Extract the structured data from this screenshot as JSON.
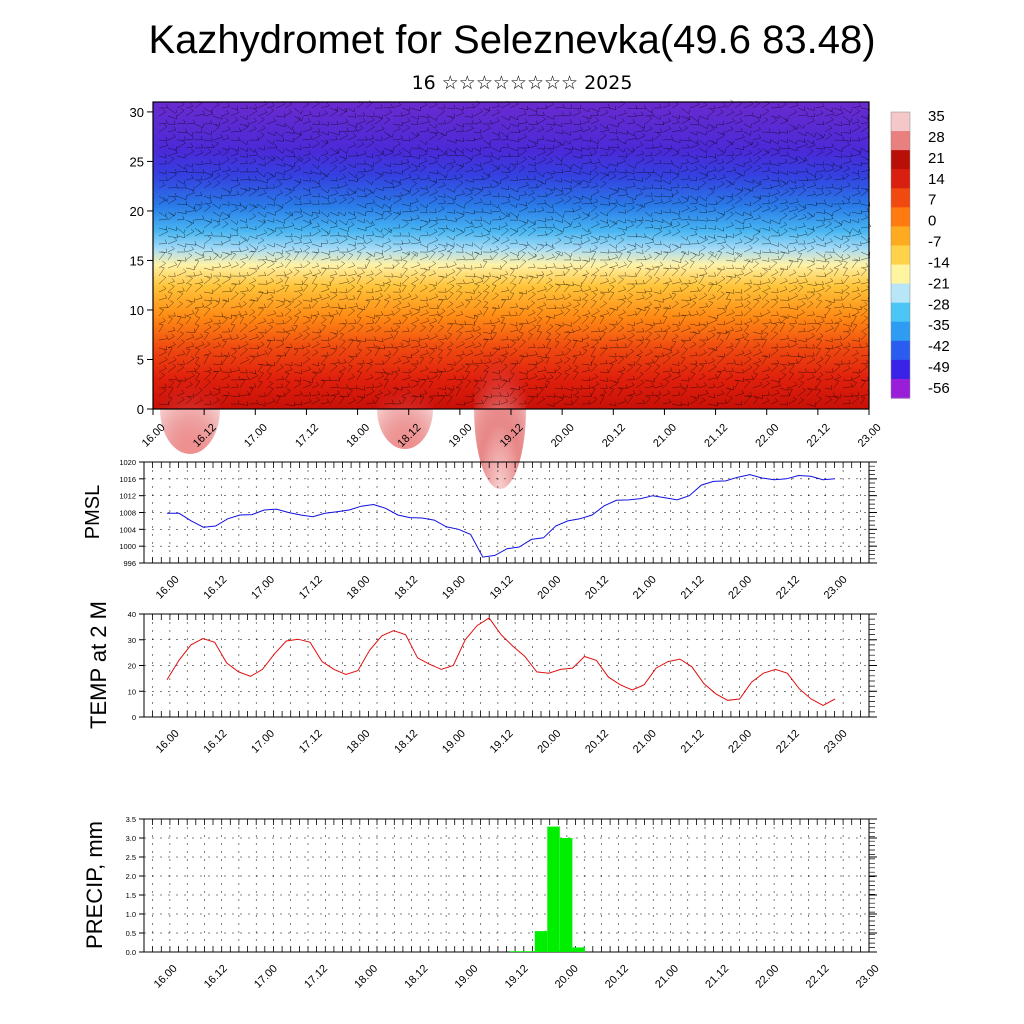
{
  "header": {
    "title": "Kazhydromet for Seleznevka(49.6 83.48)",
    "subtitle": "16 ☆☆☆☆☆☆☆☆ 2025"
  },
  "time_labels": [
    "16.00",
    "16.12",
    "17.00",
    "17.12",
    "18.00",
    "18.12",
    "19.00",
    "19.12",
    "20.00",
    "20.12",
    "21.00",
    "21.12",
    "22.00",
    "22.12",
    "23.00"
  ],
  "colors": {
    "pressure_line": "#1010e0",
    "temperature_line": "#e01010",
    "precip_bars": "#00ee00",
    "frame": "#000000"
  },
  "chart_data": [
    {
      "id": "cross-section",
      "type": "heatmap",
      "y_ticks": [
        "0",
        "5",
        "10",
        "15",
        "20",
        "25",
        "30"
      ],
      "ylim": [
        0,
        31
      ],
      "colorbar": {
        "labels": [
          "35",
          "28",
          "21",
          "14",
          "7",
          "0",
          "-7",
          "-14",
          "-21",
          "-28",
          "-35",
          "-42",
          "-49",
          "-56"
        ],
        "range": [
          -60,
          38
        ],
        "palette": [
          "#9a1ed9",
          "#3a22e6",
          "#2a5cf0",
          "#2e9cf2",
          "#4cc6f4",
          "#b8e6f6",
          "#fff4a0",
          "#ffd24a",
          "#ffab20",
          "#ff7a10",
          "#f04a10",
          "#d91f10",
          "#b81008",
          "#e88080",
          "#f4c8c8"
        ]
      }
    },
    {
      "id": "pmsl",
      "type": "line",
      "ylabel": "PMSL",
      "y_ticks": [
        "996",
        "1000",
        "1004",
        "1008",
        "1012",
        "1016",
        "1020"
      ],
      "ylim": [
        996,
        1020
      ],
      "series": [
        {
          "values": [
            1007.8,
            1007.8,
            1006,
            1004.5,
            1004.8,
            1006.5,
            1007.4,
            1007.5,
            1008.6,
            1008.8,
            1008,
            1007.4,
            1007,
            1007.8,
            1008.2,
            1008.6,
            1009.5,
            1009.9,
            1009,
            1007.4,
            1006.8,
            1006.7,
            1006.2,
            1004.6,
            1004,
            1002.8,
            997.4,
            997.8,
            999.4,
            999.8,
            1001.6,
            1002,
            1004.8,
            1006,
            1006.5,
            1007.4,
            1009.6,
            1010.9,
            1011,
            1011.3,
            1012,
            1011.5,
            1011,
            1012,
            1014.5,
            1015.4,
            1015.5,
            1016.4,
            1017,
            1016.2,
            1015.8,
            1016,
            1016.8,
            1016.6,
            1015.8,
            1016
          ]
        }
      ]
    },
    {
      "id": "temp2m",
      "type": "line",
      "ylabel": "TEMP at 2 M",
      "y_ticks": [
        "0",
        "10",
        "20",
        "30",
        "40"
      ],
      "ylim": [
        0,
        40
      ],
      "series": [
        {
          "values": [
            14.5,
            22,
            28,
            30.5,
            29,
            21,
            17.5,
            15.8,
            18.5,
            24.5,
            29.5,
            30.2,
            29,
            21.5,
            18.5,
            16.5,
            18,
            26,
            31.5,
            33.5,
            32,
            23,
            20.5,
            18.5,
            20,
            30,
            35.5,
            38.5,
            32,
            27.5,
            23.5,
            17.5,
            17,
            18.5,
            19,
            23.5,
            22,
            15.5,
            12.5,
            10.5,
            12.5,
            19,
            21.5,
            22.5,
            19.5,
            13,
            9,
            6.5,
            7,
            13.5,
            17,
            18.5,
            17,
            11,
            7,
            4.5,
            7
          ]
        }
      ]
    },
    {
      "id": "precip",
      "type": "bar",
      "ylabel": "PRECIP, mm",
      "y_ticks": [
        "0.0",
        "0.5",
        "1.0",
        "1.5",
        "2.0",
        "2.5",
        "3.0",
        "3.5"
      ],
      "ylim": [
        0,
        3.5
      ],
      "bars": [
        {
          "x": 28,
          "value": 0.02
        },
        {
          "x": 29,
          "value": 0.02
        },
        {
          "x": 30,
          "value": 0.55
        },
        {
          "x": 31,
          "value": 3.3
        },
        {
          "x": 32,
          "value": 3.0
        },
        {
          "x": 33,
          "value": 0.12
        }
      ]
    }
  ]
}
